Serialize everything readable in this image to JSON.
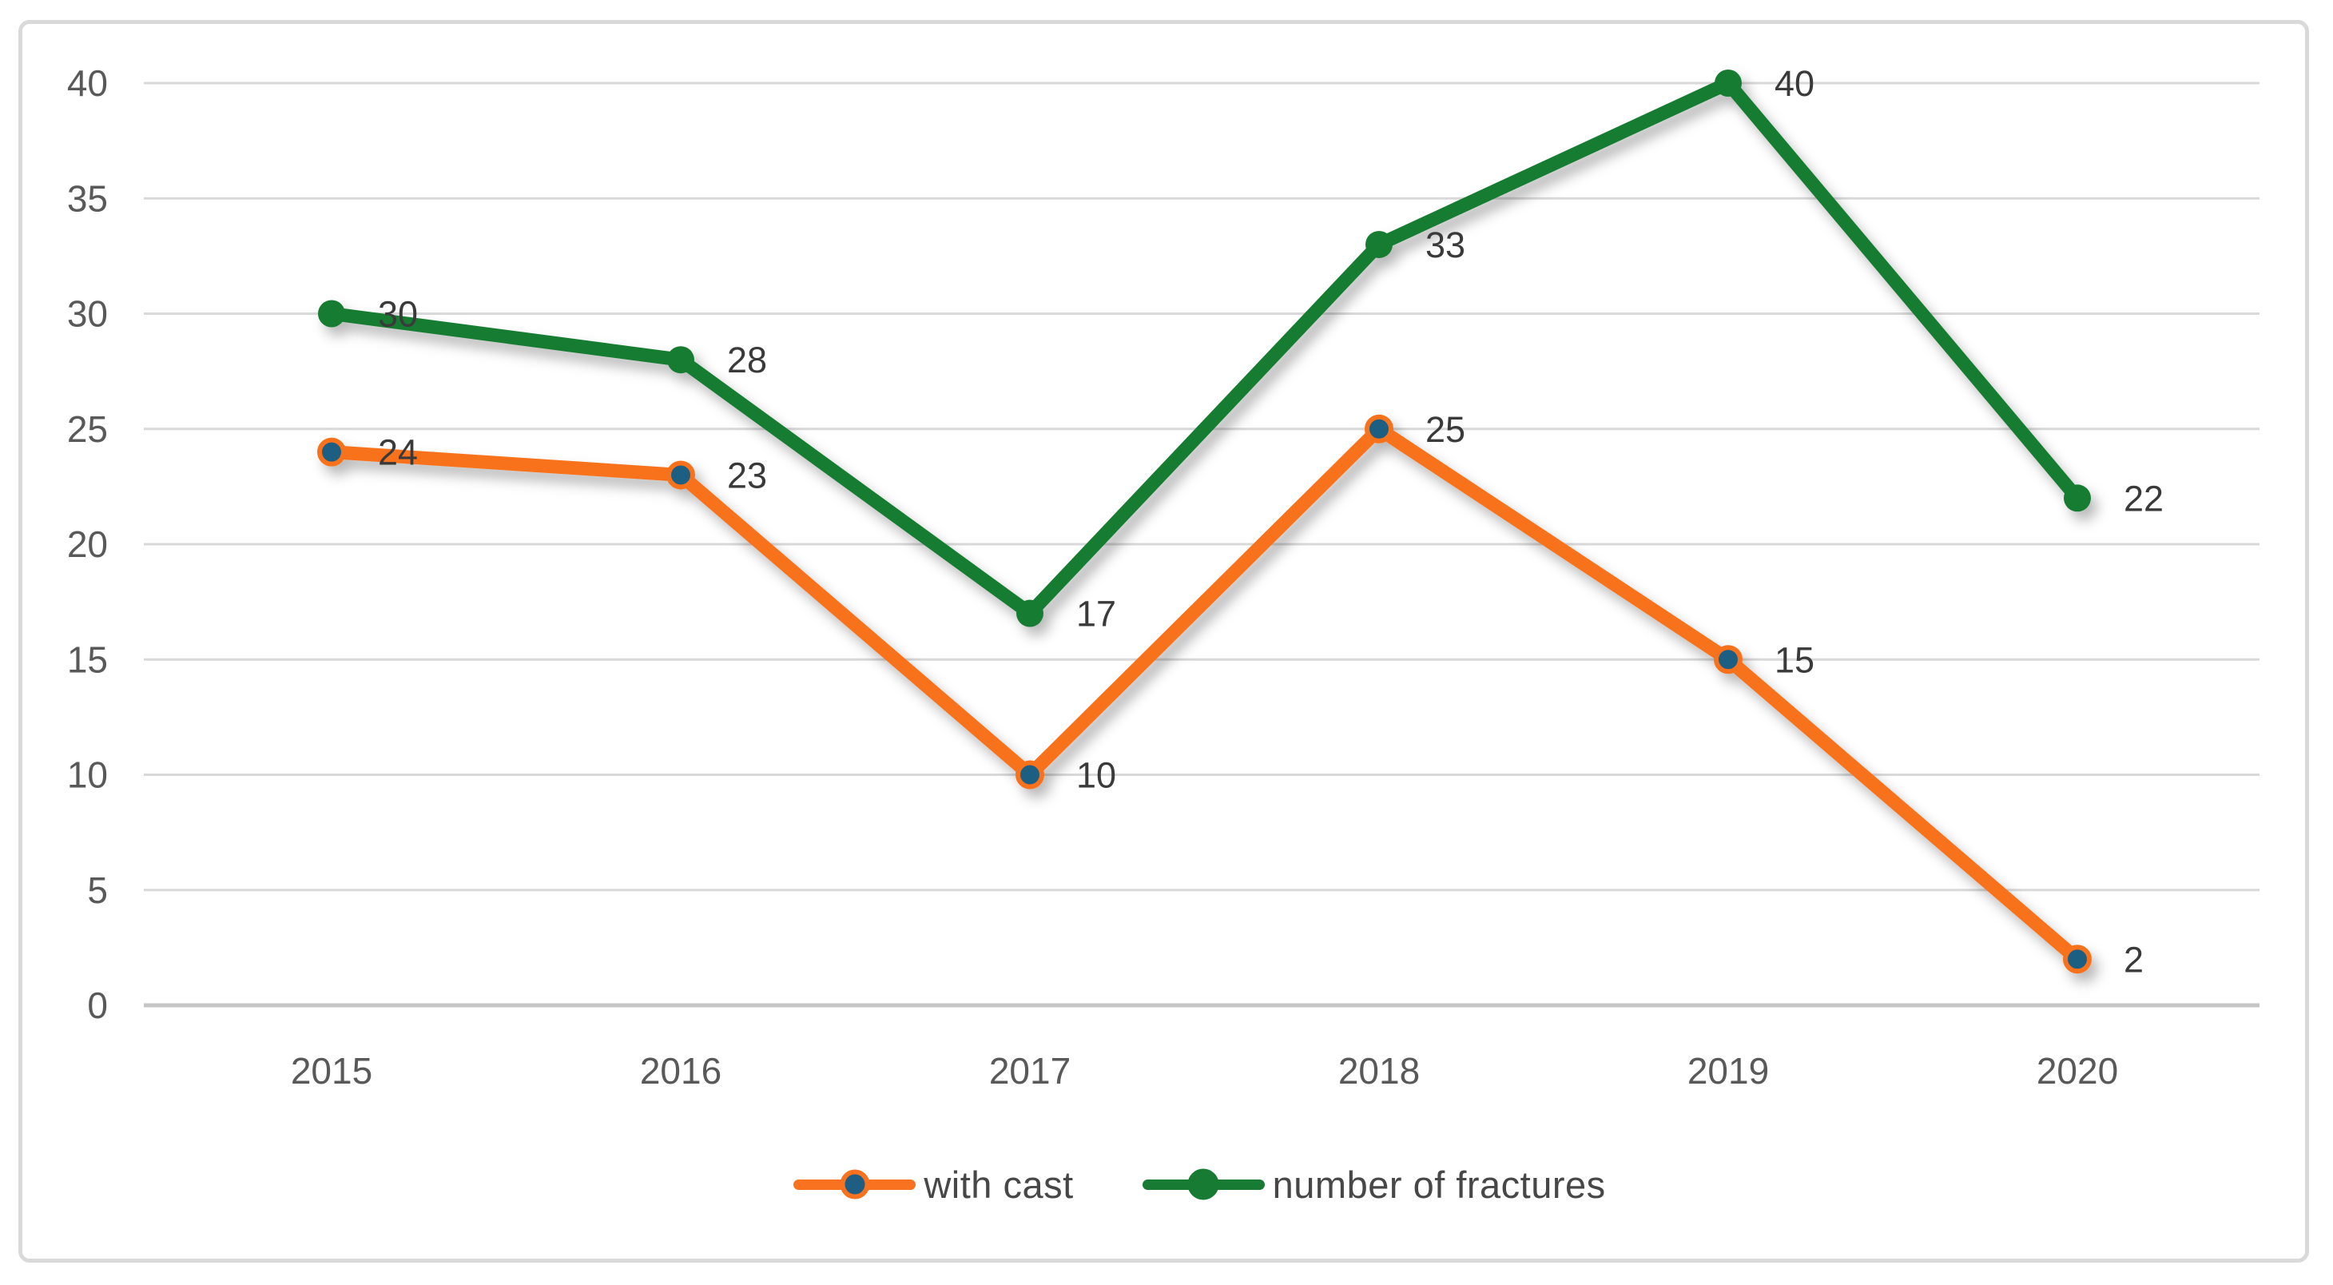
{
  "chart_data": {
    "type": "line",
    "categories": [
      "2015",
      "2016",
      "2017",
      "2018",
      "2019",
      "2020"
    ],
    "series": [
      {
        "name": "with cast",
        "values": [
          24,
          23,
          10,
          25,
          15,
          2
        ],
        "line_color": "#F8721F",
        "marker_fill": "#1F5E82",
        "marker_stroke": "#F8721F"
      },
      {
        "name": "number of fractures",
        "values": [
          30,
          28,
          17,
          33,
          40,
          22
        ],
        "line_color": "#177B33",
        "marker_fill": "#177B33",
        "marker_stroke": "#177B33"
      }
    ],
    "title": "",
    "xlabel": "",
    "ylabel": "",
    "ylim": [
      0,
      40
    ],
    "y_ticks": [
      0,
      5,
      10,
      15,
      20,
      25,
      30,
      35,
      40
    ],
    "grid": "horizontal",
    "legend_position": "bottom",
    "data_labels": true,
    "grid_color": "#D9D9D9",
    "axis_line_color": "#C6C6C6",
    "tick_label_color": "#595959",
    "data_label_color": "#3A3A3A",
    "legend_text_color": "#474747",
    "frame_border_color": "#D9D9D9",
    "background_color": "#FFFFFF"
  }
}
